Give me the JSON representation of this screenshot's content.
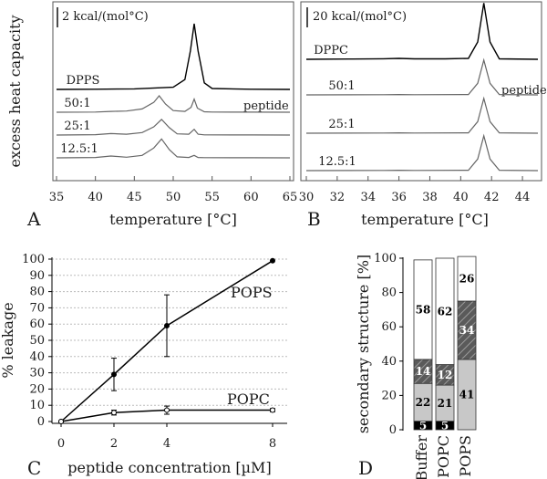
{
  "chart_data": [
    {
      "panel": "A",
      "type": "line",
      "ylabel": "excess heat capacity",
      "xlabel": "temperature [°C]",
      "xlim": [
        35,
        65
      ],
      "xticks": [
        35,
        40,
        45,
        50,
        55,
        60,
        65
      ],
      "scale_bar": "2 kcal/(mol°C)",
      "annotation": "peptide",
      "series": [
        {
          "name": "DPPS",
          "color": "#000000",
          "x": [
            35,
            40,
            45,
            50,
            51.5,
            52.2,
            52.7,
            53.2,
            54,
            55,
            60,
            65
          ],
          "y": [
            0,
            0.02,
            0.05,
            0.2,
            0.9,
            3.5,
            6.0,
            3.5,
            0.6,
            0.08,
            0.02,
            0
          ]
        },
        {
          "name": "50:1",
          "color": "#666666",
          "x": [
            35,
            40,
            42,
            44,
            46,
            47.5,
            48.2,
            49,
            50,
            51.5,
            52.3,
            52.7,
            53.1,
            54,
            55,
            60,
            65
          ],
          "y": [
            0,
            0.02,
            0.1,
            0.15,
            0.4,
            1.2,
            2.0,
            1.0,
            0.2,
            0.1,
            0.6,
            1.6,
            0.5,
            0.05,
            0.02,
            0.01,
            0
          ]
        },
        {
          "name": "25:1",
          "color": "#666666",
          "x": [
            35,
            40,
            42,
            44,
            46,
            47.5,
            48.5,
            49.5,
            50.5,
            52,
            52.7,
            53.2,
            54,
            60,
            65
          ],
          "y": [
            0,
            0.05,
            0.18,
            0.1,
            0.3,
            1.0,
            1.9,
            0.9,
            0.15,
            0.1,
            0.7,
            0.1,
            0.02,
            0.01,
            0
          ]
        },
        {
          "name": "12.5:1",
          "color": "#666666",
          "x": [
            35,
            40,
            42,
            44,
            46,
            47.5,
            48.5,
            49.5,
            50.5,
            52,
            52.7,
            53.2,
            54,
            60,
            65
          ],
          "y": [
            0,
            0.05,
            0.22,
            0.08,
            0.3,
            1.2,
            2.3,
            1.0,
            0.12,
            0.05,
            0.3,
            0.05,
            0.02,
            0.01,
            0
          ]
        }
      ]
    },
    {
      "panel": "B",
      "type": "line",
      "xlabel": "temperature [°C]",
      "xlim": [
        30,
        45
      ],
      "xticks": [
        30,
        32,
        34,
        36,
        38,
        40,
        42,
        44
      ],
      "scale_bar": "20 kcal/(mol°C)",
      "annotation": "peptide",
      "series": [
        {
          "name": "DPPC",
          "color": "#000000",
          "x": [
            30,
            33,
            35,
            36,
            37,
            39,
            40.5,
            41.1,
            41.5,
            41.9,
            42.5,
            45
          ],
          "y": [
            0,
            0.03,
            0.06,
            0.1,
            0.05,
            0.05,
            0.1,
            2.0,
            6.5,
            2.0,
            0.05,
            0
          ]
        },
        {
          "name": "50:1",
          "color": "#666666",
          "x": [
            30,
            35,
            36,
            37,
            40.5,
            41.1,
            41.5,
            41.9,
            42.5,
            45
          ],
          "y": [
            0,
            0.02,
            0.05,
            0.02,
            0.05,
            1.5,
            4.5,
            1.5,
            0.05,
            0
          ]
        },
        {
          "name": "25:1",
          "color": "#666666",
          "x": [
            30,
            35,
            36,
            37,
            40.5,
            41.1,
            41.5,
            41.9,
            42.5,
            45
          ],
          "y": [
            0,
            0.02,
            0.05,
            0.02,
            0.05,
            1.5,
            4.5,
            1.5,
            0.05,
            0
          ]
        },
        {
          "name": "12.5:1",
          "color": "#666666",
          "x": [
            30,
            35,
            36,
            37,
            40.5,
            41.1,
            41.5,
            41.9,
            42.5,
            45
          ],
          "y": [
            0,
            0.02,
            0.05,
            0.02,
            0.05,
            1.5,
            4.5,
            1.5,
            0.05,
            0
          ]
        }
      ]
    },
    {
      "panel": "C",
      "type": "line",
      "xlabel": "peptide concentration [µM]",
      "ylabel": "% leakage",
      "xlim": [
        0,
        8
      ],
      "ylim": [
        0,
        100
      ],
      "xticks": [
        0,
        2,
        4,
        8
      ],
      "yticks": [
        0,
        10,
        20,
        30,
        40,
        50,
        60,
        70,
        80,
        90,
        100
      ],
      "grid": true,
      "series": [
        {
          "name": "POPS",
          "marker": "filled",
          "x": [
            0,
            2,
            4,
            8
          ],
          "y": [
            0,
            29,
            59,
            99
          ],
          "err": [
            0,
            10,
            19,
            0.5
          ]
        },
        {
          "name": "POPC",
          "marker": "open",
          "x": [
            0,
            2,
            4,
            8
          ],
          "y": [
            0,
            5.5,
            7,
            7
          ],
          "err": [
            0,
            1.5,
            2.5,
            1
          ]
        }
      ]
    },
    {
      "panel": "D",
      "type": "bar",
      "stacked": true,
      "ylabel": "secondary structure [%]",
      "ylim": [
        0,
        100
      ],
      "yticks": [
        0,
        20,
        40,
        60,
        80,
        100
      ],
      "categories": [
        "Buffer",
        "POPC",
        "POPS"
      ],
      "series": [
        {
          "name": "black",
          "color": "#000000",
          "values": [
            5,
            5,
            0
          ],
          "labels": [
            "5",
            "5",
            ""
          ]
        },
        {
          "name": "light",
          "color": "#c8c8c8",
          "values": [
            22,
            21,
            41
          ],
          "labels": [
            "22",
            "21",
            "41"
          ]
        },
        {
          "name": "hatched",
          "color": "#5a5a5a",
          "values": [
            14,
            12,
            34
          ],
          "labels": [
            "14",
            "12",
            "34"
          ]
        },
        {
          "name": "white",
          "color": "#ffffff",
          "values": [
            58,
            62,
            26
          ],
          "labels": [
            "58",
            "62",
            "26"
          ]
        }
      ]
    }
  ]
}
